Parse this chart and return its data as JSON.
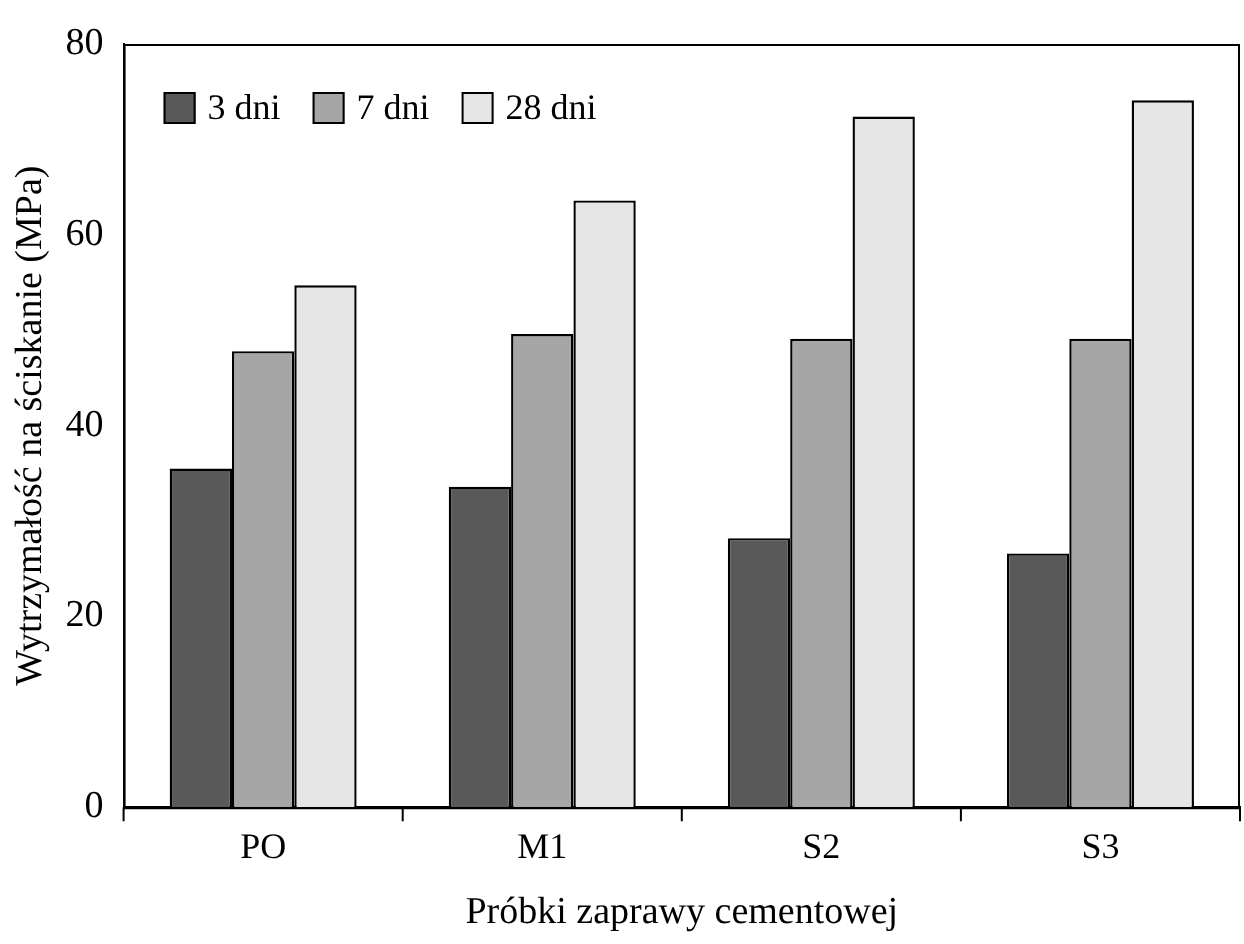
{
  "chart_data": {
    "type": "bar",
    "xlabel": "Próbki zaprawy cementowej",
    "ylabel": "Wytrzymałość na ściskanie (MPa)",
    "categories": [
      "PO",
      "M1",
      "S2",
      "S3"
    ],
    "series": [
      {
        "name": "3 dni",
        "color": "#595959",
        "values": [
          35.5,
          33.6,
          28.2,
          26.6
        ]
      },
      {
        "name": "7 dni",
        "color": "#a6a6a6",
        "values": [
          47.8,
          49.6,
          49.1,
          49.1
        ]
      },
      {
        "name": "28 dni",
        "color": "#e6e6e6",
        "values": [
          54.7,
          63.6,
          72.4,
          74.1
        ]
      }
    ],
    "ylim": [
      0,
      80
    ],
    "yticks": [
      0,
      20,
      40,
      60,
      80
    ],
    "grid": false,
    "legend": "top left"
  }
}
